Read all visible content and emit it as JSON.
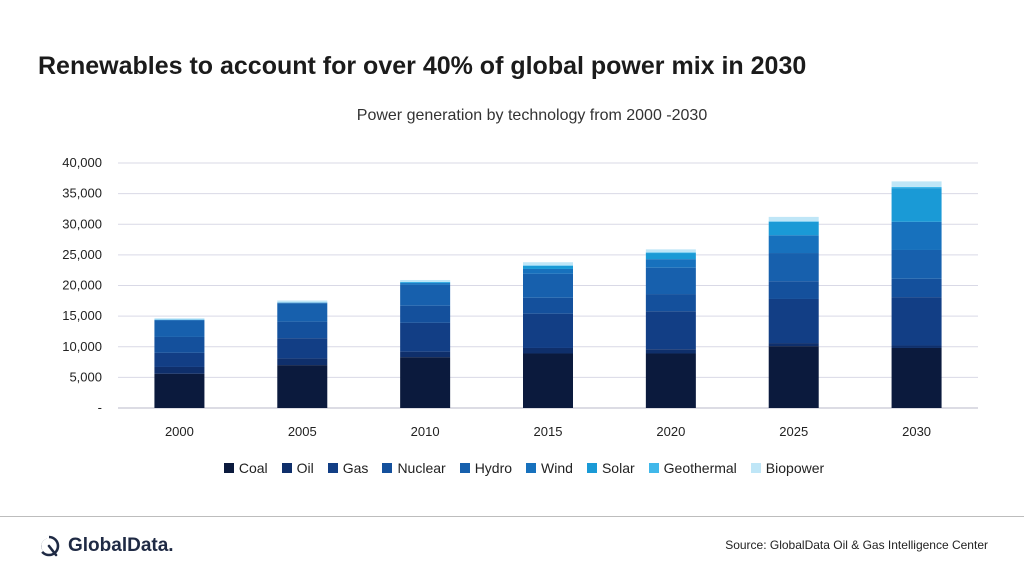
{
  "headline": "Renewables to account for over 40% of global power mix in 2030",
  "footer": {
    "brand": "GlobalData.",
    "source": "Source: GlobalData Oil & Gas Intelligence Center"
  },
  "chart_data": {
    "type": "bar",
    "stacked": true,
    "title": "Power generation by technology from 2000 -2030",
    "xlabel": "",
    "ylabel": "",
    "ylim": [
      0,
      40000
    ],
    "yticks": [
      0,
      5000,
      10000,
      15000,
      20000,
      25000,
      30000,
      35000,
      40000
    ],
    "ytick_labels": [
      "-",
      "5,000",
      "10,000",
      "15,000",
      "20,000",
      "25,000",
      "30,000",
      "35,000",
      "40,000"
    ],
    "grid": true,
    "legend_position": "bottom",
    "categories": [
      "2000",
      "2005",
      "2010",
      "2015",
      "2020",
      "2025",
      "2030"
    ],
    "series": [
      {
        "name": "Coal",
        "color": "#0b1a3d",
        "values": [
          5600,
          7000,
          8300,
          8900,
          8900,
          10100,
          9800
        ]
      },
      {
        "name": "Oil",
        "color": "#0f2f6b",
        "values": [
          1100,
          1100,
          900,
          900,
          700,
          500,
          400
        ]
      },
      {
        "name": "Gas",
        "color": "#123e85",
        "values": [
          2300,
          3300,
          4700,
          5600,
          6200,
          7200,
          7900
        ]
      },
      {
        "name": "Nuclear",
        "color": "#14509c",
        "values": [
          2600,
          2700,
          2800,
          2600,
          2800,
          2900,
          3000
        ]
      },
      {
        "name": "Hydro",
        "color": "#1760ad",
        "values": [
          2700,
          3000,
          3400,
          3900,
          4300,
          4600,
          4700
        ]
      },
      {
        "name": "Wind",
        "color": "#1771bd",
        "values": [
          100,
          100,
          300,
          800,
          1400,
          2900,
          4600
        ]
      },
      {
        "name": "Solar",
        "color": "#1a9ad6",
        "values": [
          0,
          0,
          100,
          500,
          1000,
          2200,
          5500
        ]
      },
      {
        "name": "Geothermal",
        "color": "#41b8ea",
        "values": [
          50,
          50,
          100,
          100,
          100,
          100,
          200
        ]
      },
      {
        "name": "Biopower",
        "color": "#bfe6f7",
        "values": [
          200,
          300,
          300,
          500,
          500,
          700,
          900
        ]
      }
    ]
  }
}
